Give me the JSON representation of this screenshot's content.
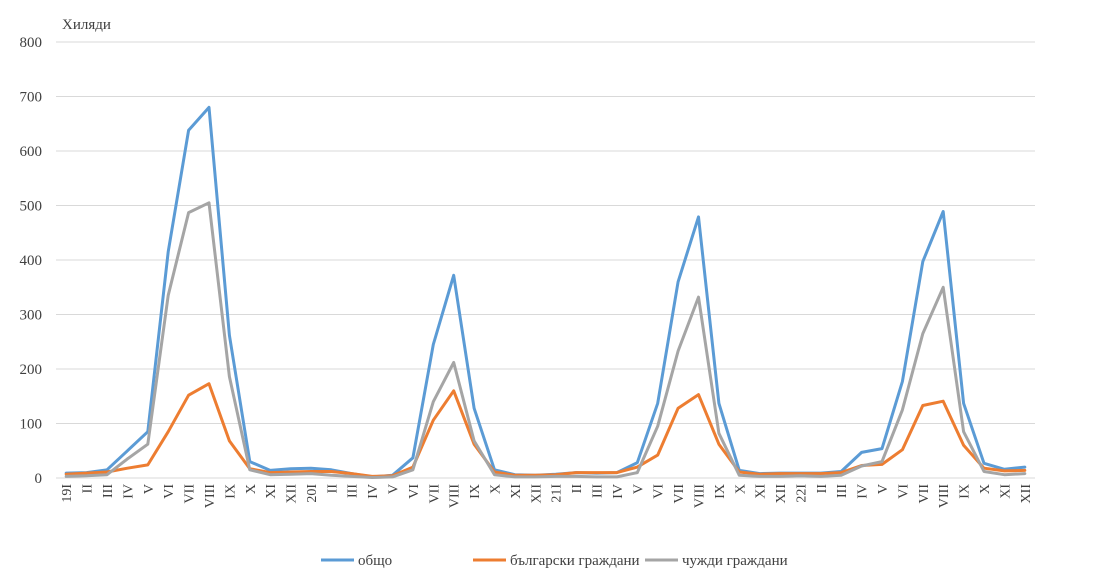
{
  "chart_data": {
    "type": "line",
    "ylabel": "Хиляди",
    "ylim": [
      0,
      800
    ],
    "yticks": [
      0,
      100,
      200,
      300,
      400,
      500,
      600,
      700,
      800
    ],
    "grid": "horizontal",
    "legend_position": "bottom",
    "categories": [
      "19 I",
      "II",
      "III",
      "IV",
      "V",
      "VI",
      "VII",
      "VIII",
      "IX",
      "X",
      "XI",
      "XII",
      "20 I",
      "II",
      "III",
      "IV",
      "V",
      "VI",
      "VII",
      "VIII",
      "IX",
      "X",
      "XI",
      "XII",
      "21 I",
      "II",
      "III",
      "IV",
      "V",
      "VI",
      "VII",
      "VIII",
      "IX",
      "X",
      "XI",
      "XII",
      "22 I",
      "II",
      "III",
      "IV",
      "V",
      "VI",
      "VII",
      "VIII",
      "IX",
      "X",
      "XI",
      "XII"
    ],
    "series": [
      {
        "name": "общо",
        "color": "#5B9BD5",
        "values": [
          9,
          10,
          15,
          50,
          85,
          415,
          638,
          680,
          262,
          30,
          14,
          17,
          18,
          15,
          8,
          2,
          5,
          37,
          245,
          372,
          128,
          15,
          6,
          5,
          7,
          10,
          9,
          10,
          28,
          137,
          360,
          479,
          137,
          14,
          8,
          9,
          9,
          9,
          12,
          47,
          54,
          177,
          397,
          489,
          137,
          27,
          16,
          20
        ]
      },
      {
        "name": "български граждани",
        "color": "#ED7D31",
        "values": [
          7,
          9,
          11,
          18,
          24,
          85,
          152,
          173,
          68,
          17,
          10,
          11,
          12,
          12,
          8,
          3,
          4,
          20,
          106,
          160,
          62,
          11,
          5,
          5,
          6,
          10,
          10,
          10,
          20,
          42,
          128,
          153,
          62,
          11,
          7,
          8,
          8,
          8,
          10,
          23,
          25,
          52,
          133,
          141,
          60,
          18,
          13,
          14
        ]
      },
      {
        "name": "чужди граждани",
        "color": "#A5A5A5",
        "values": [
          3,
          4,
          6,
          35,
          62,
          335,
          487,
          505,
          186,
          15,
          6,
          7,
          8,
          5,
          3,
          1,
          2,
          15,
          140,
          212,
          68,
          6,
          2,
          2,
          3,
          3,
          2,
          2,
          10,
          95,
          233,
          332,
          82,
          5,
          3,
          3,
          4,
          3,
          5,
          22,
          30,
          125,
          265,
          350,
          85,
          12,
          6,
          8
        ]
      }
    ]
  }
}
